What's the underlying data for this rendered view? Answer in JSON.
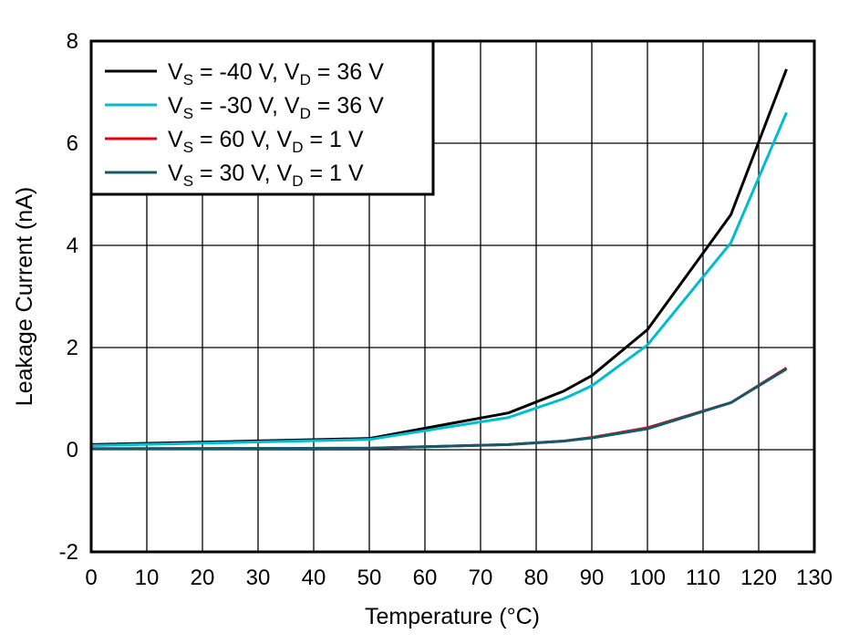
{
  "chart_data": {
    "type": "line",
    "title": "",
    "xlabel": "Temperature (°C)",
    "ylabel": "Leakage Current (nA)",
    "xlim": [
      0,
      130
    ],
    "ylim": [
      -2,
      8
    ],
    "xticks": [
      0,
      10,
      20,
      30,
      40,
      50,
      60,
      70,
      80,
      90,
      100,
      110,
      120,
      130
    ],
    "yticks": [
      -2,
      0,
      2,
      4,
      6,
      8
    ],
    "grid": true,
    "legend_position": "top-left",
    "series": [
      {
        "name": "VS = -40 V, VD = 36 V",
        "label": {
          "a": "V",
          "s1": "S",
          "b": " = -40 V, V",
          "s2": "D",
          "c": " = 36 V"
        },
        "color": "#000000",
        "x": [
          0,
          50,
          75,
          85,
          90,
          100,
          115,
          125
        ],
        "y": [
          0.1,
          0.22,
          0.72,
          1.15,
          1.45,
          2.35,
          4.6,
          7.45
        ]
      },
      {
        "name": "VS = -30 V, VD = 36 V",
        "label": {
          "a": "V",
          "s1": "S",
          "b": " = -30 V, V",
          "s2": "D",
          "c": " = 36 V"
        },
        "color": "#00BCD0",
        "x": [
          0,
          50,
          75,
          85,
          90,
          100,
          115,
          125
        ],
        "y": [
          0.08,
          0.2,
          0.63,
          1.0,
          1.25,
          2.05,
          4.05,
          6.6
        ]
      },
      {
        "name": "VS = 60 V, VD = 1 V",
        "label": {
          "a": "V",
          "s1": "S",
          "b": " = 60 V, V",
          "s2": "D",
          "c": " = 1 V"
        },
        "color": "#E8000B",
        "x": [
          0,
          50,
          75,
          85,
          90,
          100,
          115,
          125
        ],
        "y": [
          0.02,
          0.03,
          0.1,
          0.17,
          0.24,
          0.43,
          0.92,
          1.6
        ]
      },
      {
        "name": "VS = 30 V, VD = 1 V",
        "label": {
          "a": "V",
          "s1": "S",
          "b": " = 30 V, V",
          "s2": "D",
          "c": " = 1 V"
        },
        "color": "#145A6A",
        "x": [
          0,
          50,
          75,
          85,
          90,
          100,
          115,
          125
        ],
        "y": [
          0.02,
          0.03,
          0.1,
          0.17,
          0.23,
          0.41,
          0.92,
          1.58
        ]
      }
    ]
  }
}
